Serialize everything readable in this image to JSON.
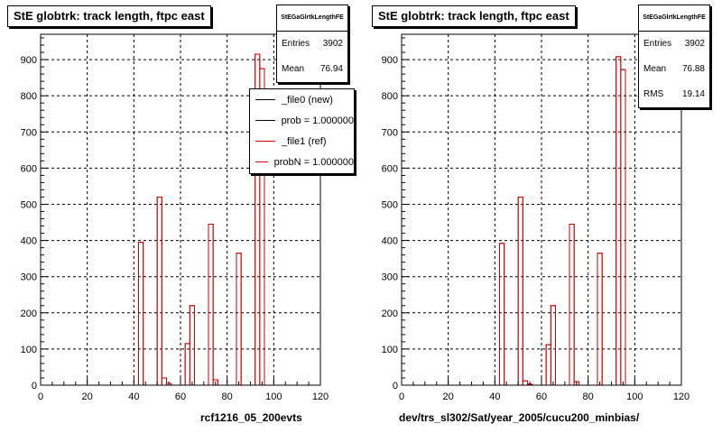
{
  "chart_data": [
    {
      "type": "bar",
      "title": "StE globtrk: track length, ftpc east",
      "xlabel": "rcf1216_05_200evts",
      "ylabel": "",
      "xlim": [
        0,
        120
      ],
      "ylim": [
        0,
        970
      ],
      "xticks": [
        0,
        20,
        40,
        60,
        80,
        100,
        120
      ],
      "yticks": [
        0,
        100,
        200,
        300,
        400,
        500,
        600,
        700,
        800,
        900
      ],
      "grid": true,
      "bin_width": 2,
      "stats": {
        "name": "StEGaGlrtkLengthFE",
        "entries_label": "Entries",
        "entries": "3902",
        "mean_label": "Mean",
        "mean": "76.94"
      },
      "legend": {
        "placement": "top-right",
        "entries": [
          {
            "label": "_file0 (new)",
            "color": "#000000"
          },
          {
            "label": "prob = 1.000000",
            "color": "#000000"
          },
          {
            "label": "_file1 (ref)",
            "color": "#cc0000"
          },
          {
            "label": "probN = 1.000000",
            "color": "#cc0000"
          }
        ]
      },
      "series": [
        {
          "color": "#cc0000",
          "bins": [
            {
              "x": 42,
              "y": 395
            },
            {
              "x": 50,
              "y": 520
            },
            {
              "x": 52,
              "y": 20
            },
            {
              "x": 54,
              "y": 5
            },
            {
              "x": 62,
              "y": 115
            },
            {
              "x": 64,
              "y": 220
            },
            {
              "x": 72,
              "y": 445
            },
            {
              "x": 74,
              "y": 15
            },
            {
              "x": 84,
              "y": 365
            },
            {
              "x": 92,
              "y": 915
            },
            {
              "x": 94,
              "y": 875
            }
          ]
        }
      ]
    },
    {
      "type": "bar",
      "title": "StE globtrk: track length, ftpc east",
      "xlabel": "dev/trs_sl302/Sat/year_2005/cucu200_minbias/",
      "ylabel": "",
      "xlim": [
        0,
        120
      ],
      "ylim": [
        0,
        970
      ],
      "xticks": [
        0,
        20,
        40,
        60,
        80,
        100,
        120
      ],
      "yticks": [
        0,
        100,
        200,
        300,
        400,
        500,
        600,
        700,
        800,
        900
      ],
      "grid": true,
      "bin_width": 2,
      "stats": {
        "name": "StEGaGlrtkLengthFE",
        "entries_label": "Entries",
        "entries": "3902",
        "mean_label": "Mean",
        "mean": "76.88",
        "rms_label": "RMS",
        "rms": "19.14"
      },
      "series": [
        {
          "color": "#cc0000",
          "bins": [
            {
              "x": 42,
              "y": 392
            },
            {
              "x": 50,
              "y": 520
            },
            {
              "x": 52,
              "y": 12
            },
            {
              "x": 54,
              "y": 3
            },
            {
              "x": 62,
              "y": 112
            },
            {
              "x": 64,
              "y": 220
            },
            {
              "x": 72,
              "y": 445
            },
            {
              "x": 74,
              "y": 10
            },
            {
              "x": 84,
              "y": 365
            },
            {
              "x": 92,
              "y": 908
            },
            {
              "x": 94,
              "y": 872
            }
          ]
        }
      ]
    }
  ]
}
